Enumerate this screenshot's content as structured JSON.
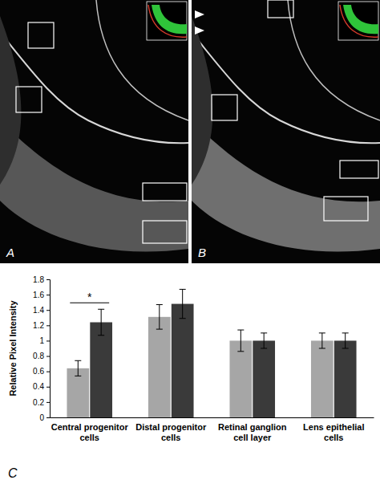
{
  "panel_labels": [
    "A",
    "B",
    "C"
  ],
  "chart_data": {
    "type": "bar",
    "y_label": "Relative Pixel Intensity",
    "categories": [
      "Central progenitor cells",
      "Distal progenitor cells",
      "Retinal ganglion cell layer",
      "Lens epithelial cells"
    ],
    "series": [
      {
        "color": "#a6a6a6",
        "values": [
          0.64,
          1.31,
          1.0,
          1.0
        ],
        "errors": [
          0.1,
          0.16,
          0.14,
          0.1
        ]
      },
      {
        "color": "#3a3a3a",
        "values": [
          1.24,
          1.48,
          1.0,
          1.0
        ],
        "errors": [
          0.17,
          0.19,
          0.1,
          0.1
        ]
      }
    ],
    "ylim": [
      0,
      1.8
    ],
    "yticks": [
      0,
      0.2,
      0.4,
      0.6,
      0.8,
      1,
      1.2,
      1.4,
      1.6,
      1.8
    ],
    "grid": false,
    "significance": [
      {
        "category": "Central progenitor cells",
        "label": "*"
      }
    ]
  }
}
